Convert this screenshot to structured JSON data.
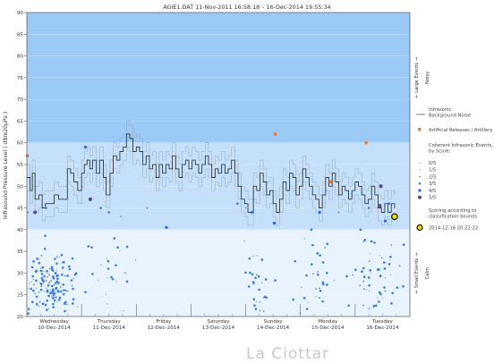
{
  "chart_data": {
    "type": "scatter",
    "title": "AGIE1.DAT   11-Nov-2011 16:58:18   –   16-Dec-2014 19:55:34",
    "ylabel": "Infrasound Pressure Level  ( dBre20μPa )",
    "ylim": [
      20,
      90
    ],
    "yticks": [
      20,
      25,
      30,
      35,
      40,
      45,
      50,
      55,
      60,
      65,
      70,
      75,
      80,
      85,
      90
    ],
    "xlim": [
      0,
      7
    ],
    "days": [
      {
        "day": "Wednesday",
        "date": "10-Dec-2014"
      },
      {
        "day": "Thursday",
        "date": "11-Dec-2014"
      },
      {
        "day": "Friday",
        "date": "12-Dec-2014"
      },
      {
        "day": "Saturday",
        "date": "13-Dec-2014"
      },
      {
        "day": "Sunday",
        "date": "14-Dec-2014"
      },
      {
        "day": "Monday",
        "date": "15-Dec-2014"
      },
      {
        "day": "Tuesday",
        "date": "16-Dec-2014"
      }
    ],
    "bands": [
      {
        "from": 60,
        "to": 90,
        "color": "#9ccaf6"
      },
      {
        "from": 40,
        "to": 60,
        "color": "#c4e0fa"
      },
      {
        "from": 20,
        "to": 40,
        "color": "#e8f3fd"
      }
    ],
    "band_labels": [
      {
        "text": "←  Large Events  →",
        "at": 75
      },
      {
        "text": "Noisy",
        "at": 75
      },
      {
        "text": "←  Small Events  →",
        "at": 30
      },
      {
        "text": "Calm",
        "at": 30
      }
    ],
    "legend": {
      "background_label": "Infrasonic Background Noise",
      "artificial_label": "Artificial Releases / Artillery",
      "coherent_title": "Coherent Infrasonic Events, by Score:",
      "scores": [
        "0/5",
        "1/5",
        "2/5",
        "3/5",
        "4/5",
        "5/5"
      ],
      "scoring_note": "Scoring according to classification bounds",
      "latest_label": "2014-12-16 20:22:22"
    },
    "background_noise": [
      [
        0.0,
        52
      ],
      [
        0.06,
        49
      ],
      [
        0.1,
        53
      ],
      [
        0.15,
        47
      ],
      [
        0.22,
        48
      ],
      [
        0.28,
        45
      ],
      [
        0.34,
        46
      ],
      [
        0.42,
        46
      ],
      [
        0.5,
        48
      ],
      [
        0.58,
        47
      ],
      [
        0.66,
        47
      ],
      [
        0.74,
        54
      ],
      [
        0.8,
        53
      ],
      [
        0.86,
        51
      ],
      [
        0.93,
        49
      ],
      [
        1.0,
        53
      ],
      [
        1.05,
        55
      ],
      [
        1.1,
        56
      ],
      [
        1.15,
        54
      ],
      [
        1.2,
        56
      ],
      [
        1.27,
        53
      ],
      [
        1.33,
        56
      ],
      [
        1.4,
        52
      ],
      [
        1.45,
        48
      ],
      [
        1.52,
        53
      ],
      [
        1.58,
        57
      ],
      [
        1.64,
        56
      ],
      [
        1.7,
        58
      ],
      [
        1.76,
        59
      ],
      [
        1.82,
        62
      ],
      [
        1.88,
        61
      ],
      [
        1.94,
        58
      ],
      [
        2.0,
        59
      ],
      [
        2.06,
        58
      ],
      [
        2.12,
        55
      ],
      [
        2.18,
        57
      ],
      [
        2.24,
        54
      ],
      [
        2.3,
        55
      ],
      [
        2.36,
        52
      ],
      [
        2.42,
        55
      ],
      [
        2.48,
        53
      ],
      [
        2.54,
        55
      ],
      [
        2.6,
        54
      ],
      [
        2.66,
        57
      ],
      [
        2.72,
        54
      ],
      [
        2.78,
        52
      ],
      [
        2.84,
        55
      ],
      [
        2.9,
        56
      ],
      [
        2.96,
        54
      ],
      [
        3.02,
        56
      ],
      [
        3.08,
        55
      ],
      [
        3.14,
        53
      ],
      [
        3.2,
        55
      ],
      [
        3.26,
        57
      ],
      [
        3.32,
        55
      ],
      [
        3.38,
        52
      ],
      [
        3.44,
        54
      ],
      [
        3.5,
        53
      ],
      [
        3.56,
        55
      ],
      [
        3.62,
        53
      ],
      [
        3.68,
        54
      ],
      [
        3.74,
        56
      ],
      [
        3.8,
        53
      ],
      [
        3.86,
        50
      ],
      [
        3.92,
        47
      ],
      [
        3.98,
        46
      ],
      [
        4.04,
        44
      ],
      [
        4.08,
        44
      ],
      [
        4.14,
        50
      ],
      [
        4.2,
        49
      ],
      [
        4.26,
        53
      ],
      [
        4.32,
        51
      ],
      [
        4.38,
        48
      ],
      [
        4.44,
        49
      ],
      [
        4.5,
        46
      ],
      [
        4.56,
        44
      ],
      [
        4.62,
        47
      ],
      [
        4.68,
        51
      ],
      [
        4.74,
        49
      ],
      [
        4.8,
        53
      ],
      [
        4.86,
        52
      ],
      [
        4.92,
        48
      ],
      [
        4.98,
        50
      ],
      [
        5.04,
        54
      ],
      [
        5.1,
        52
      ],
      [
        5.16,
        50
      ],
      [
        5.22,
        48
      ],
      [
        5.28,
        47
      ],
      [
        5.34,
        45
      ],
      [
        5.4,
        48
      ],
      [
        5.46,
        52
      ],
      [
        5.52,
        50
      ],
      [
        5.58,
        53
      ],
      [
        5.64,
        51
      ],
      [
        5.7,
        48
      ],
      [
        5.76,
        50
      ],
      [
        5.82,
        49
      ],
      [
        5.88,
        47
      ],
      [
        5.94,
        49
      ],
      [
        6.0,
        51
      ],
      [
        6.06,
        50
      ],
      [
        6.12,
        48
      ],
      [
        6.18,
        46
      ],
      [
        6.24,
        47
      ],
      [
        6.3,
        50
      ],
      [
        6.36,
        48
      ],
      [
        6.42,
        45
      ],
      [
        6.48,
        44
      ],
      [
        6.54,
        46
      ],
      [
        6.6,
        44
      ],
      [
        6.66,
        46
      ],
      [
        6.72,
        45
      ]
    ],
    "artificial_events": [
      [
        0.01,
        57
      ],
      [
        4.54,
        62
      ],
      [
        5.55,
        51
      ],
      [
        6.2,
        60
      ]
    ],
    "events": [
      {
        "x": 0.15,
        "y": 44,
        "s": 5
      },
      {
        "x": 1.07,
        "y": 59,
        "s": 4
      },
      {
        "x": 1.16,
        "y": 47,
        "s": 5
      },
      {
        "x": 2.55,
        "y": 40.5,
        "s": 4
      },
      {
        "x": 4.12,
        "y": 44,
        "s": 4
      },
      {
        "x": 4.52,
        "y": 41.5,
        "s": 4
      },
      {
        "x": 5.35,
        "y": 44,
        "s": 4
      },
      {
        "x": 6.45,
        "y": 45.5,
        "s": 5
      },
      {
        "x": 6.47,
        "y": 50,
        "s": 5
      },
      {
        "x": 6.55,
        "y": 42,
        "s": 4
      },
      {
        "x": 6.62,
        "y": 46,
        "s": 3
      },
      {
        "x": 6.25,
        "y": 45,
        "s": 3
      },
      {
        "x": 0.02,
        "y": 44,
        "s": 2
      },
      {
        "x": 0.35,
        "y": 45,
        "s": 3
      },
      {
        "x": 1.35,
        "y": 45,
        "s": 3
      },
      {
        "x": 1.5,
        "y": 44,
        "s": 3
      },
      {
        "x": 1.6,
        "y": 38,
        "s": 3
      },
      {
        "x": 1.72,
        "y": 43,
        "s": 2
      },
      {
        "x": 2.2,
        "y": 45,
        "s": 2
      },
      {
        "x": 3.85,
        "y": 46,
        "s": 3
      },
      {
        "x": 4.0,
        "y": 45,
        "s": 2
      },
      {
        "x": 5.2,
        "y": 40,
        "s": 3
      },
      {
        "x": 5.7,
        "y": 44,
        "s": 2
      },
      {
        "x": 6.1,
        "y": 40,
        "s": 3
      }
    ],
    "latest_event": {
      "x": 6.72,
      "y": 43
    }
  }
}
